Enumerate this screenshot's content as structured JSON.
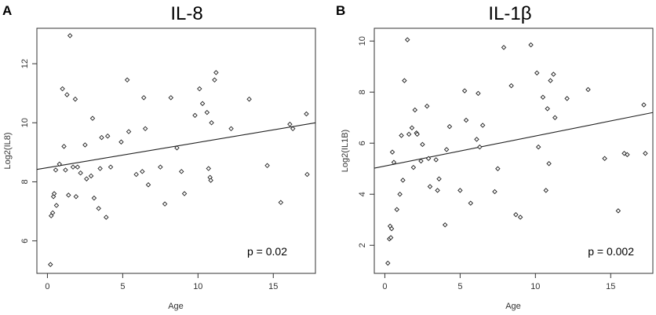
{
  "chart_data": [
    {
      "panel": "A",
      "type": "scatter",
      "title": "IL-8",
      "xlabel": "Age",
      "ylabel": "Log2(IL8)",
      "xlim": [
        -0.7,
        17.8
      ],
      "ylim": [
        4.9,
        13.2
      ],
      "xticks": [
        0,
        5,
        10,
        15
      ],
      "yticks": [
        6,
        8,
        10,
        12
      ],
      "annotation": "p = 0.02",
      "fit_line": {
        "x": [
          -0.7,
          17.8
        ],
        "y": [
          8.42,
          10.0
        ]
      },
      "points": [
        [
          0.2,
          5.2
        ],
        [
          0.25,
          6.85
        ],
        [
          0.35,
          6.95
        ],
        [
          0.4,
          7.5
        ],
        [
          0.45,
          7.6
        ],
        [
          0.55,
          8.4
        ],
        [
          0.6,
          7.2
        ],
        [
          0.8,
          8.6
        ],
        [
          1.0,
          11.15
        ],
        [
          1.1,
          9.2
        ],
        [
          1.2,
          8.4
        ],
        [
          1.3,
          10.95
        ],
        [
          1.4,
          7.55
        ],
        [
          1.5,
          12.95
        ],
        [
          1.7,
          8.5
        ],
        [
          1.85,
          10.8
        ],
        [
          1.9,
          7.5
        ],
        [
          2.0,
          8.5
        ],
        [
          2.2,
          8.3
        ],
        [
          2.5,
          9.25
        ],
        [
          2.6,
          8.1
        ],
        [
          2.9,
          8.2
        ],
        [
          3.0,
          10.15
        ],
        [
          3.1,
          7.45
        ],
        [
          3.4,
          7.1
        ],
        [
          3.5,
          8.45
        ],
        [
          3.6,
          9.5
        ],
        [
          3.9,
          6.8
        ],
        [
          4.0,
          9.55
        ],
        [
          4.2,
          8.5
        ],
        [
          4.9,
          9.35
        ],
        [
          5.3,
          11.45
        ],
        [
          5.4,
          9.7
        ],
        [
          5.9,
          8.25
        ],
        [
          6.3,
          8.35
        ],
        [
          6.4,
          10.85
        ],
        [
          6.5,
          9.8
        ],
        [
          6.7,
          7.9
        ],
        [
          7.5,
          8.5
        ],
        [
          7.8,
          7.25
        ],
        [
          8.2,
          10.85
        ],
        [
          8.6,
          9.15
        ],
        [
          8.9,
          8.35
        ],
        [
          9.1,
          7.6
        ],
        [
          9.8,
          10.25
        ],
        [
          10.1,
          11.15
        ],
        [
          10.3,
          10.65
        ],
        [
          10.6,
          10.35
        ],
        [
          10.7,
          8.45
        ],
        [
          10.8,
          8.15
        ],
        [
          10.85,
          8.05
        ],
        [
          10.9,
          10.0
        ],
        [
          11.1,
          11.45
        ],
        [
          11.2,
          11.7
        ],
        [
          12.2,
          9.8
        ],
        [
          13.4,
          10.8
        ],
        [
          14.6,
          8.55
        ],
        [
          15.5,
          7.3
        ],
        [
          16.1,
          9.95
        ],
        [
          16.3,
          9.8
        ],
        [
          17.2,
          10.3
        ],
        [
          17.25,
          8.25
        ]
      ]
    },
    {
      "panel": "B",
      "type": "scatter",
      "title": "IL-1β",
      "xlabel": "Age",
      "ylabel": "Log2(IL1B)",
      "xlim": [
        -0.7,
        17.8
      ],
      "ylim": [
        0.9,
        10.5
      ],
      "xticks": [
        0,
        5,
        10,
        15
      ],
      "yticks": [
        2,
        4,
        6,
        8,
        10
      ],
      "annotation": "p = 0.002",
      "fit_line": {
        "x": [
          -0.7,
          17.8
        ],
        "y": [
          5.02,
          7.2
        ]
      },
      "points": [
        [
          0.2,
          1.3
        ],
        [
          0.3,
          2.25
        ],
        [
          0.35,
          2.75
        ],
        [
          0.4,
          2.3
        ],
        [
          0.45,
          2.65
        ],
        [
          0.5,
          5.65
        ],
        [
          0.6,
          5.25
        ],
        [
          0.8,
          3.4
        ],
        [
          1.0,
          4.0
        ],
        [
          1.1,
          6.3
        ],
        [
          1.2,
          4.55
        ],
        [
          1.3,
          8.45
        ],
        [
          1.5,
          10.05
        ],
        [
          1.6,
          6.35
        ],
        [
          1.8,
          6.6
        ],
        [
          1.9,
          5.05
        ],
        [
          2.0,
          7.3
        ],
        [
          2.1,
          6.4
        ],
        [
          2.15,
          6.35
        ],
        [
          2.4,
          5.3
        ],
        [
          2.5,
          5.95
        ],
        [
          2.8,
          7.45
        ],
        [
          2.9,
          5.4
        ],
        [
          3.0,
          4.3
        ],
        [
          3.4,
          5.35
        ],
        [
          3.5,
          4.15
        ],
        [
          3.6,
          4.6
        ],
        [
          4.0,
          2.8
        ],
        [
          4.1,
          5.75
        ],
        [
          4.3,
          6.65
        ],
        [
          5.0,
          4.15
        ],
        [
          5.3,
          8.05
        ],
        [
          5.4,
          6.9
        ],
        [
          5.7,
          3.65
        ],
        [
          6.1,
          6.15
        ],
        [
          6.2,
          7.95
        ],
        [
          6.3,
          5.85
        ],
        [
          6.5,
          6.7
        ],
        [
          7.3,
          4.1
        ],
        [
          7.5,
          5.0
        ],
        [
          7.9,
          9.75
        ],
        [
          8.4,
          8.25
        ],
        [
          8.7,
          3.2
        ],
        [
          9.0,
          3.1
        ],
        [
          9.7,
          9.85
        ],
        [
          10.1,
          8.75
        ],
        [
          10.2,
          5.85
        ],
        [
          10.5,
          7.8
        ],
        [
          10.7,
          4.15
        ],
        [
          10.8,
          7.35
        ],
        [
          10.9,
          5.2
        ],
        [
          11.0,
          8.45
        ],
        [
          11.2,
          8.7
        ],
        [
          11.3,
          7.0
        ],
        [
          12.1,
          7.75
        ],
        [
          13.5,
          8.1
        ],
        [
          14.6,
          5.4
        ],
        [
          15.5,
          3.35
        ],
        [
          15.9,
          5.6
        ],
        [
          16.1,
          5.55
        ],
        [
          17.2,
          7.5
        ],
        [
          17.3,
          5.6
        ]
      ]
    }
  ]
}
